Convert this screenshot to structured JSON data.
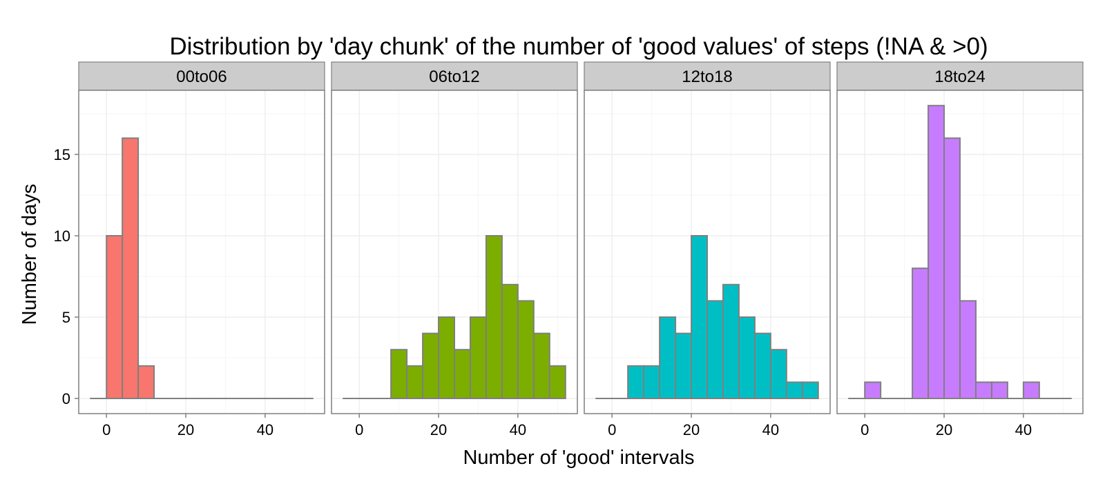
{
  "chart_data": {
    "type": "bar",
    "title": "Distribution by 'day chunk' of the number of 'good values' of steps (!NA & >0)",
    "xlabel": "Number of 'good' intervals",
    "ylabel": "Number of days",
    "x_bin_edges": [
      -4,
      0,
      4,
      8,
      12,
      16,
      20,
      24,
      28,
      32,
      36,
      40,
      44,
      48,
      52
    ],
    "xlim": [
      -7,
      55
    ],
    "ylim": [
      0,
      19.5
    ],
    "x_ticks": [
      0,
      20,
      40
    ],
    "x_tick_labels": [
      "0",
      "20",
      "40"
    ],
    "y_ticks": [
      0,
      5,
      10,
      15
    ],
    "y_tick_labels": [
      "0",
      "5",
      "10",
      "15"
    ],
    "grid": true,
    "series": [
      {
        "name": "00to06",
        "color": "#F8766D",
        "values": [
          0,
          10,
          16,
          2,
          0,
          0,
          0,
          0,
          0,
          0,
          0,
          0,
          0,
          0
        ]
      },
      {
        "name": "06to12",
        "color": "#7CAE00",
        "values": [
          0,
          0,
          0,
          3,
          2,
          4,
          5,
          3,
          5,
          10,
          7,
          6,
          4,
          2
        ]
      },
      {
        "name": "12to18",
        "color": "#00BFC4",
        "values": [
          0,
          0,
          2,
          2,
          5,
          4,
          10,
          6,
          7,
          5,
          4,
          3,
          1,
          1
        ]
      },
      {
        "name": "18to24",
        "color": "#C77CFF",
        "values": [
          0,
          1,
          0,
          0,
          8,
          18,
          16,
          6,
          1,
          1,
          0,
          1,
          0,
          0
        ]
      }
    ]
  }
}
